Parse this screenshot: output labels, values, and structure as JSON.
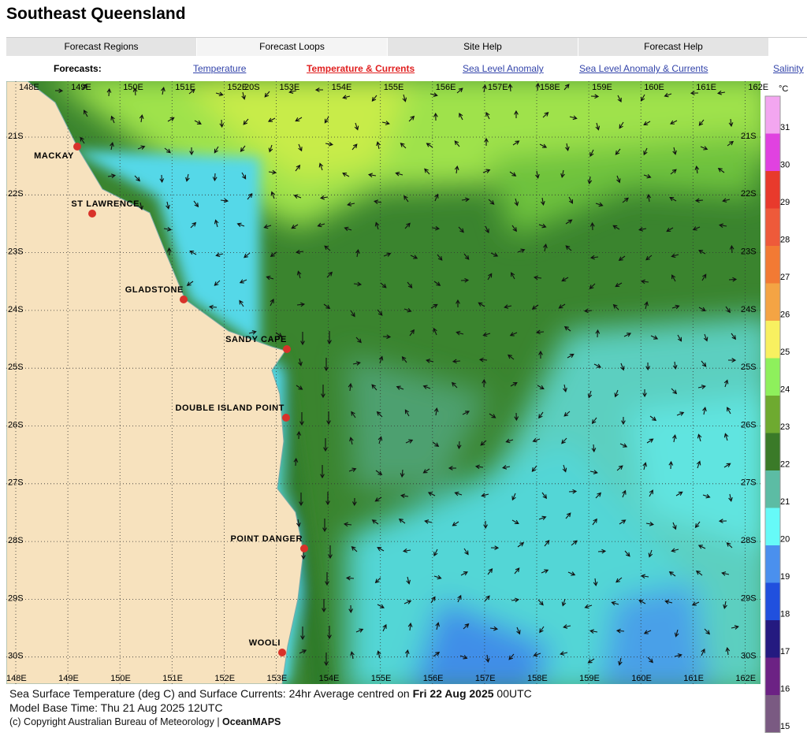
{
  "header": {
    "title": "Southeast Queensland"
  },
  "tabs": [
    "Forecast Regions",
    "Forecast Loops",
    "Site Help",
    "Forecast Help"
  ],
  "forecasts": {
    "label": "Forecasts:",
    "links": [
      "Temperature",
      "Temperature & Currents",
      "Sea Level Anomaly",
      "Sea Level Anomaly & Currents",
      "Salinity"
    ]
  },
  "map": {
    "lon_labels": [
      "148E",
      "149E",
      "150E",
      "151E",
      "152E",
      "153E",
      "154E",
      "155E",
      "156E",
      "157E",
      "158E",
      "159E",
      "160E",
      "161E",
      "162E"
    ],
    "top_lat_label": "20S",
    "lat_labels": [
      "21S",
      "22S",
      "23S",
      "24S",
      "25S",
      "26S",
      "27S",
      "28S",
      "29S",
      "30S"
    ],
    "places": [
      "MACKAY",
      "ST LAWRENCE",
      "GLADSTONE",
      "SANDY CAPE",
      "DOUBLE ISLAND POINT",
      "POINT DANGER",
      "WOOLI"
    ]
  },
  "colorbar": {
    "unit": "°C",
    "labels": [
      "31",
      "30",
      "29",
      "28",
      "27",
      "26",
      "25",
      "24",
      "23",
      "22",
      "21",
      "20",
      "19",
      "18",
      "17",
      "16",
      "15"
    ],
    "colors": [
      "#f3a6f0",
      "#e042e0",
      "#e83a2c",
      "#ee5a3a",
      "#f27a34",
      "#f4a444",
      "#f8f060",
      "#8ef05c",
      "#6eaa30",
      "#3a7a28",
      "#5cbca4",
      "#66faf8",
      "#4a90ee",
      "#2050de",
      "#241a80",
      "#6c2284",
      "#7a5a82"
    ]
  },
  "caption": {
    "line1": [
      "Sea Surface Temperature (deg C) and Surface Currents: 24hr Average centred on ",
      "Fri 22 Aug 2025",
      " 00UTC"
    ],
    "line2": "Model Base Time: Thu 21 Aug 2025 12UTC",
    "line3": [
      "(c) Copyright Australian Bureau of Meteorology | ",
      "OceanMAPS"
    ]
  }
}
